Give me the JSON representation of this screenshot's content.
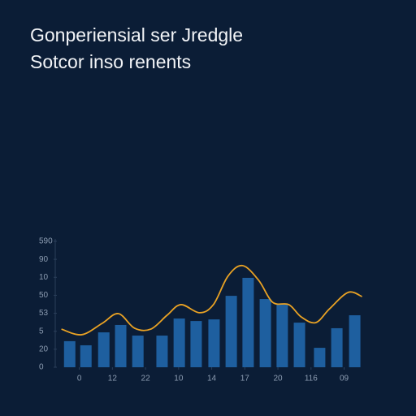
{
  "chart_data": {
    "type": "bar",
    "title": "Gonperiensial ser Jredgle",
    "subtitle": "Sotcor inso renents",
    "xlim": [
      -0.8,
      8.6
    ],
    "xticks": [
      0,
      {
        "value": 1,
        "label": "12"
      },
      {
        "value": 2,
        "label": "22"
      },
      {
        "value": 3,
        "label": "10"
      },
      {
        "value": 4,
        "label": "14"
      },
      {
        "value": 5,
        "label": "17"
      },
      {
        "value": 6,
        "label": "20"
      },
      {
        "value": 7,
        "label": "116"
      },
      {
        "value": 8,
        "label": "09"
      }
    ],
    "ylim": [
      0,
      7
    ],
    "yticks": [
      0,
      {
        "value": 1,
        "label": "20"
      },
      {
        "value": 2,
        "label": "5"
      },
      {
        "value": 3,
        "label": "53"
      },
      {
        "value": 4,
        "label": "50"
      },
      {
        "value": 5,
        "label": "10"
      },
      {
        "value": 6,
        "label": "90"
      },
      {
        "value": 7,
        "label": "590"
      }
    ],
    "series": [
      {
        "type": "bar",
        "color": "#1e5f9f",
        "x": [
          -0.29,
          0.2,
          0.74,
          1.25,
          1.77,
          2.5,
          3.02,
          3.53,
          4.07,
          4.59,
          5.1,
          5.62,
          6.13,
          6.65,
          7.26,
          7.78,
          8.32
        ],
        "values": [
          1.45,
          1.22,
          1.94,
          2.35,
          1.76,
          1.76,
          2.71,
          2.57,
          2.66,
          3.97,
          4.97,
          3.79,
          3.52,
          2.48,
          1.08,
          2.17,
          2.89
        ]
      },
      {
        "type": "line",
        "color": "#e9a224",
        "x": [
          -0.54,
          0.07,
          0.69,
          1.18,
          1.67,
          2.16,
          2.65,
          3.07,
          3.63,
          4.05,
          4.49,
          4.93,
          5.42,
          5.84,
          6.33,
          6.7,
          7.14,
          7.56,
          8.12,
          8.54
        ],
        "values": [
          2.12,
          1.81,
          2.44,
          2.98,
          2.17,
          2.12,
          2.89,
          3.48,
          3.03,
          3.48,
          5.06,
          5.65,
          4.83,
          3.61,
          3.48,
          2.8,
          2.48,
          3.25,
          4.16,
          3.93
        ]
      }
    ]
  }
}
